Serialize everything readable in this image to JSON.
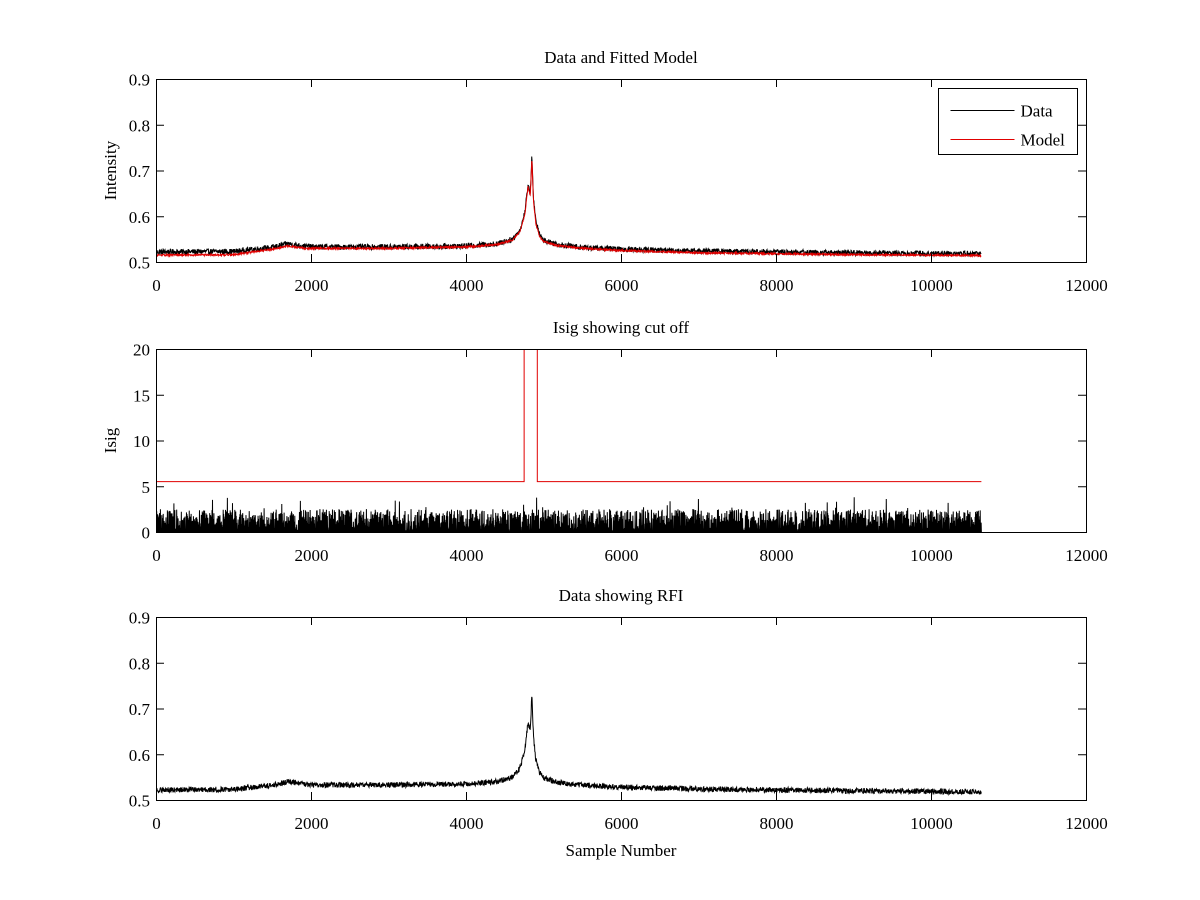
{
  "figure": {
    "background": "#ffffff"
  },
  "chart_data": [
    {
      "type": "line",
      "title": "Data and Fitted Model",
      "xlabel": "",
      "ylabel": "Intensity",
      "xlim": [
        0,
        12000
      ],
      "ylim": [
        0.5,
        0.9
      ],
      "xticks": [
        0,
        2000,
        4000,
        6000,
        8000,
        10000,
        12000
      ],
      "yticks": [
        0.5,
        0.6,
        0.7,
        0.8,
        0.9
      ],
      "xtick_labels": [
        "0",
        "2000",
        "4000",
        "6000",
        "8000",
        "10000",
        "12000"
      ],
      "ytick_labels": [
        "0.5",
        "0.6",
        "0.7",
        "0.8",
        "0.9"
      ],
      "legend": {
        "position": "top-right",
        "entries": [
          "Data",
          "Model"
        ]
      },
      "series": [
        {
          "name": "Data",
          "color": "#000000",
          "noise_amplitude": 0.006,
          "x": [
            0,
            1000,
            1500,
            1700,
            1900,
            2000,
            3000,
            4000,
            4400,
            4600,
            4700,
            4760,
            4800,
            4830,
            4850,
            4870,
            4900,
            4950,
            5000,
            5200,
            5500,
            6000,
            7000,
            8000,
            9000,
            10000,
            10650
          ],
          "y": [
            0.522,
            0.523,
            0.532,
            0.54,
            0.535,
            0.533,
            0.533,
            0.535,
            0.54,
            0.55,
            0.57,
            0.61,
            0.67,
            0.65,
            0.735,
            0.64,
            0.59,
            0.56,
            0.548,
            0.538,
            0.532,
            0.528,
            0.524,
            0.522,
            0.52,
            0.519,
            0.518
          ]
        },
        {
          "name": "Model",
          "color": "#e00000",
          "noise_amplitude": 0.002,
          "x": [
            0,
            1000,
            1500,
            1700,
            1900,
            2000,
            3000,
            4000,
            4400,
            4600,
            4700,
            4760,
            4800,
            4830,
            4850,
            4870,
            4900,
            4950,
            5000,
            5200,
            5500,
            6000,
            7000,
            8000,
            9000,
            10000,
            10650
          ],
          "y": [
            0.515,
            0.516,
            0.528,
            0.535,
            0.53,
            0.53,
            0.53,
            0.533,
            0.538,
            0.548,
            0.568,
            0.605,
            0.665,
            0.645,
            0.73,
            0.635,
            0.585,
            0.555,
            0.545,
            0.535,
            0.53,
            0.525,
            0.52,
            0.518,
            0.516,
            0.515,
            0.514
          ]
        }
      ]
    },
    {
      "type": "line",
      "title": "Isig showing cut off",
      "xlabel": "",
      "ylabel": "Isig",
      "xlim": [
        0,
        12000
      ],
      "ylim": [
        0,
        20
      ],
      "xticks": [
        0,
        2000,
        4000,
        6000,
        8000,
        10000,
        12000
      ],
      "yticks": [
        0,
        5,
        10,
        15,
        20
      ],
      "xtick_labels": [
        "0",
        "2000",
        "4000",
        "6000",
        "8000",
        "10000",
        "12000"
      ],
      "ytick_labels": [
        "0",
        "5",
        "10",
        "15",
        "20"
      ],
      "series": [
        {
          "color": "#000000",
          "style": "noise",
          "x_range": [
            0,
            10650
          ],
          "typical_max": 2.5,
          "peak_max": 3.8
        },
        {
          "color": "#e00000",
          "x": [
            0,
            4750,
            4750,
            4920,
            4920,
            10650
          ],
          "y": [
            5.5,
            5.5,
            20,
            20,
            5.5,
            5.5
          ]
        }
      ]
    },
    {
      "type": "line",
      "title": "Data showing RFI",
      "xlabel": "Sample Number",
      "ylabel": "",
      "xlim": [
        0,
        12000
      ],
      "ylim": [
        0.5,
        0.9
      ],
      "xticks": [
        0,
        2000,
        4000,
        6000,
        8000,
        10000,
        12000
      ],
      "yticks": [
        0.5,
        0.6,
        0.7,
        0.8,
        0.9
      ],
      "xtick_labels": [
        "0",
        "2000",
        "4000",
        "6000",
        "8000",
        "10000",
        "12000"
      ],
      "ytick_labels": [
        "0.5",
        "0.6",
        "0.7",
        "0.8",
        "0.9"
      ],
      "series": [
        {
          "color": "#000000",
          "noise_amplitude": 0.006,
          "x": [
            0,
            1000,
            1500,
            1700,
            1900,
            2000,
            3000,
            4000,
            4400,
            4600,
            4700,
            4760,
            4800,
            4830,
            4850,
            4870,
            4900,
            4950,
            5000,
            5200,
            5500,
            6000,
            7000,
            8000,
            9000,
            10000,
            10650
          ],
          "y": [
            0.522,
            0.523,
            0.532,
            0.54,
            0.535,
            0.533,
            0.533,
            0.535,
            0.54,
            0.55,
            0.57,
            0.61,
            0.67,
            0.65,
            0.735,
            0.64,
            0.59,
            0.56,
            0.548,
            0.538,
            0.532,
            0.528,
            0.524,
            0.522,
            0.52,
            0.519,
            0.518
          ]
        }
      ]
    }
  ]
}
